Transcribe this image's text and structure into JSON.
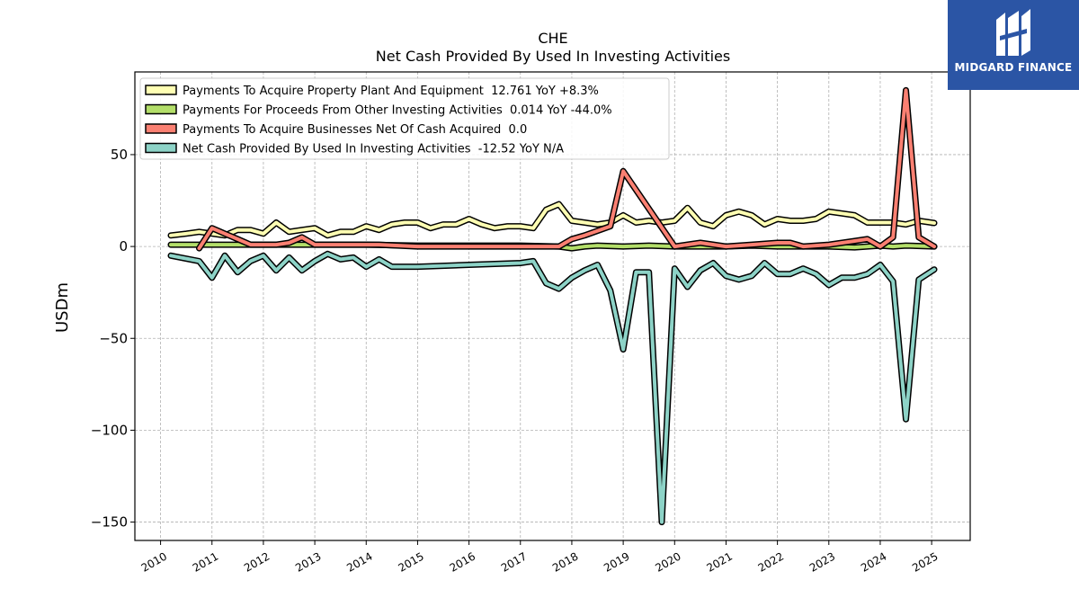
{
  "logo": {
    "text": "MIDGARD FINANCE"
  },
  "chart_data": {
    "type": "line",
    "title": "CHE",
    "subtitle": "Net Cash Provided By Used In Investing Activities",
    "ylabel": "USDm",
    "xlabel": "",
    "xlim": [
      2009.5,
      2025.75
    ],
    "ylim": [
      -160,
      95
    ],
    "x_ticks": [
      "2010",
      "2011",
      "2012",
      "2013",
      "2014",
      "2015",
      "2016",
      "2017",
      "2018",
      "2019",
      "2020",
      "2021",
      "2022",
      "2023",
      "2024",
      "2025"
    ],
    "y_ticks": [
      50,
      0,
      -50,
      -100,
      -150
    ],
    "y_tick_labels": [
      "50",
      "0",
      "−50",
      "−100",
      "−150"
    ],
    "grid": true,
    "legend_position": "top-left",
    "series": [
      {
        "name": "Payments To Acquire Property Plant And Equipment  12.761 YoY +8.3%",
        "color": "#ffffb3",
        "x": [
          2010.2,
          2010.5,
          2010.75,
          2011.0,
          2011.25,
          2011.5,
          2011.75,
          2012.0,
          2012.25,
          2012.5,
          2012.75,
          2013.0,
          2013.25,
          2013.5,
          2013.75,
          2014.0,
          2014.25,
          2014.5,
          2014.75,
          2015.0,
          2015.25,
          2015.5,
          2015.75,
          2016.0,
          2016.25,
          2016.5,
          2016.75,
          2017.0,
          2017.25,
          2017.5,
          2017.75,
          2018.0,
          2018.25,
          2018.5,
          2018.75,
          2019.0,
          2019.25,
          2019.5,
          2019.75,
          2020.0,
          2020.25,
          2020.5,
          2020.75,
          2021.0,
          2021.25,
          2021.5,
          2021.75,
          2022.0,
          2022.25,
          2022.5,
          2022.75,
          2023.0,
          2023.25,
          2023.5,
          2023.75,
          2024.0,
          2024.25,
          2024.5,
          2024.75,
          2025.05
        ],
        "y": [
          6,
          7,
          8,
          7,
          6,
          9,
          9,
          7,
          13,
          8,
          9,
          10,
          6,
          8,
          8,
          11,
          9,
          12,
          13,
          13,
          10,
          12,
          12,
          15,
          12,
          10,
          11,
          11,
          10,
          20,
          23,
          14,
          13,
          12,
          13,
          17,
          13,
          14,
          13,
          14,
          21,
          13,
          11,
          17,
          19,
          17,
          12,
          15,
          14,
          14,
          15,
          19,
          18,
          17,
          13,
          13,
          13,
          12,
          14,
          12.761
        ]
      },
      {
        "name": "Payments For Proceeds From Other Investing Activities  0.014 YoY -44.0%",
        "color": "#b3de69",
        "x": [
          2010.2,
          2011.0,
          2012.0,
          2013.0,
          2014.0,
          2015.0,
          2016.0,
          2017.0,
          2017.75,
          2018.0,
          2018.25,
          2018.5,
          2019.0,
          2019.5,
          2020.0,
          2020.5,
          2021.0,
          2021.5,
          2022.0,
          2022.5,
          2023.0,
          2023.5,
          2024.0,
          2024.25,
          2024.5,
          2025.05
        ],
        "y": [
          1,
          1,
          1,
          1,
          1,
          0.5,
          0.5,
          0.5,
          0,
          -1,
          0,
          0.5,
          0,
          0.5,
          0,
          0,
          0,
          0.5,
          0,
          0,
          0,
          -0.5,
          0.5,
          0,
          0.5,
          0.014
        ]
      },
      {
        "name": "Payments To Acquire Businesses Net Of Cash Acquired  0.0",
        "color": "#fb8072",
        "x": [
          2010.75,
          2011.0,
          2011.25,
          2011.5,
          2011.75,
          2012.0,
          2012.25,
          2012.5,
          2012.75,
          2013.0,
          2013.5,
          2013.75,
          2014.0,
          2014.25,
          2015.0,
          2016.0,
          2017.0,
          2017.75,
          2018.0,
          2018.25,
          2018.75,
          2019.0,
          2020.0,
          2020.5,
          2021.0,
          2021.5,
          2022.0,
          2022.25,
          2022.5,
          2023.0,
          2023.5,
          2023.75,
          2024.0,
          2024.25,
          2024.5,
          2024.75,
          2025.05
        ],
        "y": [
          -1,
          10,
          7,
          4,
          1,
          1,
          1,
          2,
          5,
          1,
          1,
          1,
          1,
          1,
          0,
          0,
          0,
          0,
          4,
          6,
          11,
          41,
          0,
          2,
          0,
          1,
          2,
          2,
          0,
          1,
          3,
          4,
          0,
          5,
          85,
          5,
          0
        ]
      },
      {
        "name": "Net Cash Provided By Used In Investing Activities  -12.52 YoY N/A",
        "color": "#8dd3c7",
        "x": [
          2010.2,
          2010.75,
          2011.0,
          2011.25,
          2011.5,
          2011.75,
          2012.0,
          2012.25,
          2012.5,
          2012.75,
          2013.0,
          2013.25,
          2013.5,
          2013.75,
          2014.0,
          2014.25,
          2014.5,
          2015.0,
          2016.0,
          2017.0,
          2017.25,
          2017.5,
          2017.75,
          2018.0,
          2018.25,
          2018.5,
          2018.75,
          2019.0,
          2019.25,
          2019.5,
          2019.75,
          2020.0,
          2020.25,
          2020.5,
          2020.75,
          2021.0,
          2021.25,
          2021.5,
          2021.75,
          2022.0,
          2022.25,
          2022.5,
          2022.75,
          2023.0,
          2023.25,
          2023.5,
          2023.75,
          2024.0,
          2024.25,
          2024.5,
          2024.75,
          2025.05
        ],
        "y": [
          -5,
          -8,
          -17,
          -5,
          -14,
          -8,
          -5,
          -13,
          -6,
          -13,
          -8,
          -4,
          -7,
          -6,
          -11,
          -7,
          -11,
          -11,
          -10,
          -9,
          -8,
          -20,
          -23,
          -17,
          -13,
          -10,
          -24,
          -56,
          -14,
          -14,
          -150,
          -12,
          -22,
          -13,
          -9,
          -16,
          -18,
          -16,
          -9,
          -15,
          -15,
          -12,
          -15,
          -21,
          -17,
          -17,
          -15,
          -10,
          -19,
          -94,
          -18,
          -12.52
        ]
      }
    ]
  }
}
